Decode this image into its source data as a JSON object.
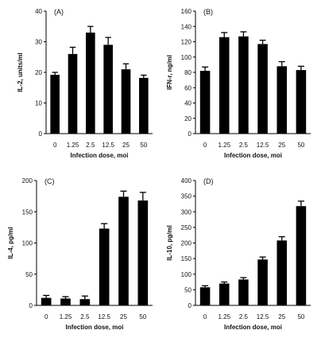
{
  "chart_data": [
    {
      "type": "bar",
      "panel_label": "(A)",
      "categories": [
        "0",
        "1.25",
        "2.5",
        "12.5",
        "25",
        "50"
      ],
      "values": [
        19.2,
        26,
        33,
        29,
        21,
        18.2
      ],
      "errors": [
        0.8,
        2.2,
        2.0,
        2.4,
        1.8,
        0.9
      ],
      "xlabel": "Infection dose, moi",
      "ylabel": "IL-2, units/ml",
      "ylim": [
        0,
        40
      ],
      "yticks": [
        0,
        10,
        20,
        30,
        40
      ],
      "color": "#000000"
    },
    {
      "type": "bar",
      "panel_label": "(B)",
      "categories": [
        "0",
        "1.25",
        "2.5",
        "12.5",
        "25",
        "50"
      ],
      "values": [
        82,
        126,
        127,
        117,
        88,
        83
      ],
      "errors": [
        5,
        6,
        6,
        5,
        6,
        5
      ],
      "xlabel": "Infection dose, moi",
      "ylabel": "IFN-r, ng/ml",
      "ylim": [
        0,
        160
      ],
      "yticks": [
        0,
        20,
        40,
        60,
        80,
        100,
        120,
        140,
        160
      ],
      "color": "#000000"
    },
    {
      "type": "bar",
      "panel_label": "(C)",
      "categories": [
        "0",
        "1.25",
        "2.5",
        "12.5",
        "25",
        "50"
      ],
      "values": [
        12,
        11,
        10,
        123,
        174,
        168
      ],
      "errors": [
        4,
        3,
        5,
        8,
        9,
        13
      ],
      "xlabel": "Infection dose, moi",
      "ylabel": "IL-4, pg/ml",
      "ylim": [
        0,
        200
      ],
      "yticks": [
        0,
        50,
        100,
        150,
        200
      ],
      "color": "#000000"
    },
    {
      "type": "bar",
      "panel_label": "(D)",
      "categories": [
        "0",
        "1.25",
        "2.5",
        "12.5",
        "25",
        "50"
      ],
      "values": [
        58,
        70,
        83,
        147,
        208,
        318
      ],
      "errors": [
        5,
        5,
        6,
        8,
        12,
        16
      ],
      "xlabel": "Infection dose, moi",
      "ylabel": "IL-10, pg/ml",
      "ylim": [
        0,
        400
      ],
      "yticks": [
        0,
        50,
        100,
        150,
        200,
        250,
        300,
        350,
        400
      ],
      "color": "#000000"
    }
  ]
}
